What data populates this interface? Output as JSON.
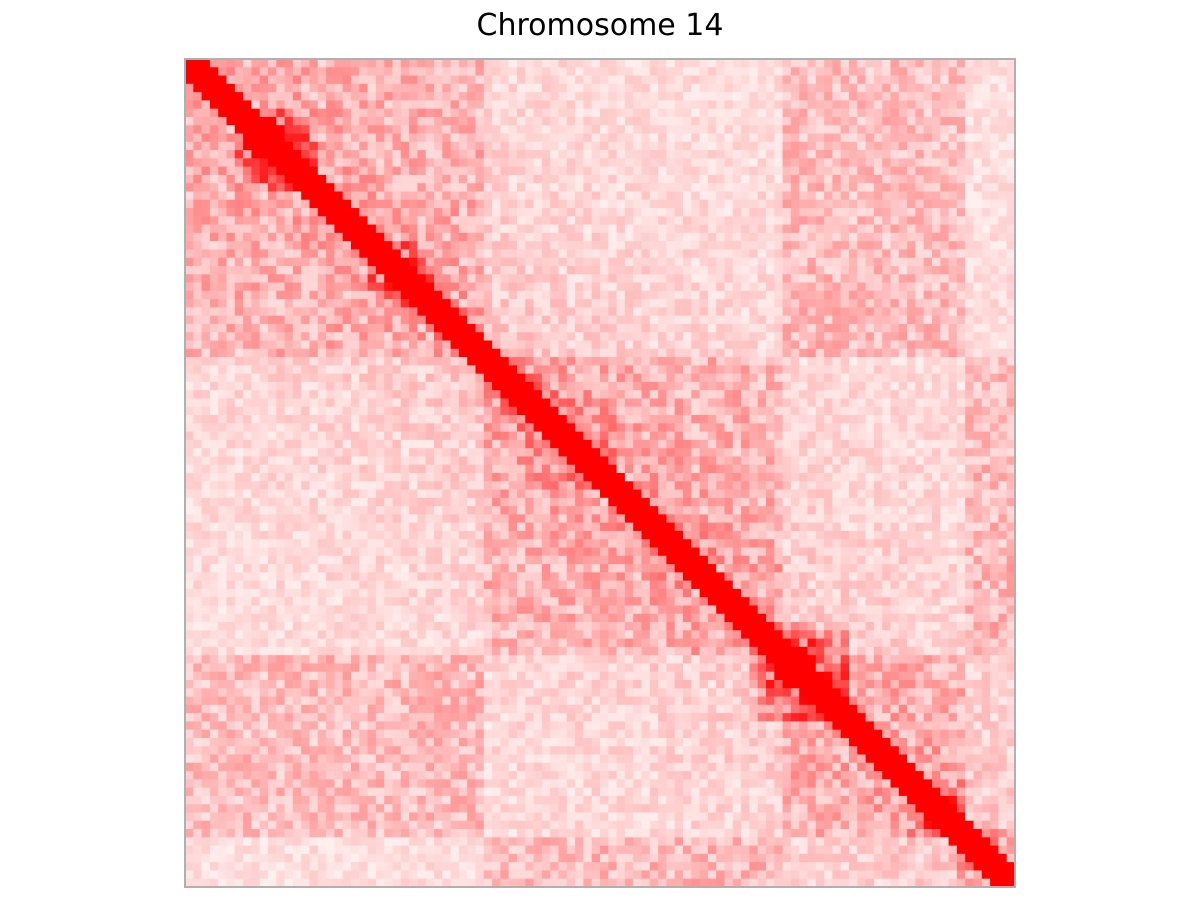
{
  "chart_data": {
    "type": "heatmap",
    "title": "Chromosome 14",
    "xlabel": "",
    "ylabel": "",
    "grid": false,
    "legend": "none",
    "axis_ticks": false,
    "bins": 100,
    "value_range": [
      0,
      1
    ],
    "colormap": {
      "low": "#ffffff",
      "high": "#ff0000"
    },
    "frame_color": "#b0b0b0",
    "diagonal_band": {
      "width_bins": 3,
      "value": 1.0
    },
    "background": {
      "mean": 0.17,
      "decay_with_distance": true
    },
    "tads": [
      {
        "start": 6,
        "end": 16,
        "value": 0.9
      },
      {
        "start": 22,
        "end": 30,
        "value": 0.85
      },
      {
        "start": 30,
        "end": 36,
        "value": 0.75
      },
      {
        "start": 36,
        "end": 52,
        "value": 0.55
      },
      {
        "start": 52,
        "end": 68,
        "value": 0.45
      },
      {
        "start": 68,
        "end": 79,
        "value": 0.5
      },
      {
        "start": 69,
        "end": 80,
        "value": 0.9
      },
      {
        "start": 87,
        "end": 94,
        "value": 0.85
      },
      {
        "start": 93,
        "end": 100,
        "value": 0.55
      }
    ],
    "compartments": {
      "A_bins": [
        [
          0,
          36
        ],
        [
          72,
          94
        ]
      ],
      "B_bins": [
        [
          36,
          72
        ],
        [
          94,
          100
        ]
      ],
      "same_compartment_enrichment": 0.12
    }
  }
}
